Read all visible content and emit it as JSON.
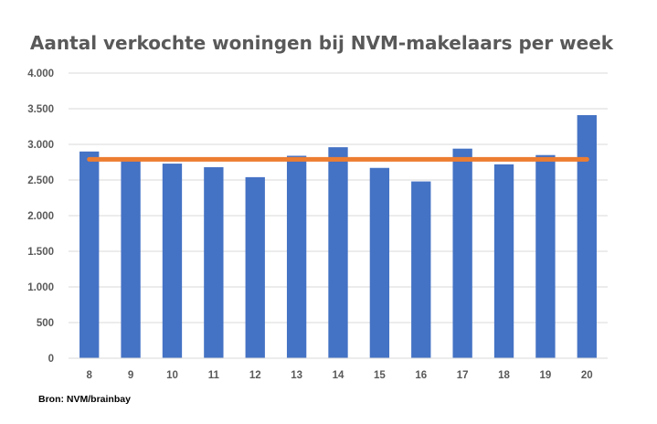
{
  "chart_data": {
    "type": "bar",
    "title": "Aantal verkochte woningen bij NVM-makelaars per week",
    "xlabel": "",
    "ylabel": "",
    "categories": [
      "8",
      "9",
      "10",
      "11",
      "12",
      "13",
      "14",
      "15",
      "16",
      "17",
      "18",
      "19",
      "20"
    ],
    "series": [
      {
        "type": "bar",
        "values": [
          2900,
          2770,
          2730,
          2680,
          2540,
          2840,
          2960,
          2670,
          2480,
          2940,
          2720,
          2850,
          3410
        ],
        "color": "#4472C4"
      },
      {
        "type": "line",
        "values": [
          2790,
          2790,
          2790,
          2790,
          2790,
          2790,
          2790,
          2790,
          2790,
          2790,
          2790,
          2790,
          2790
        ],
        "color": "#ED7D31"
      }
    ],
    "ylim": [
      0,
      4000
    ],
    "yticks": [
      0,
      500,
      1000,
      1500,
      2000,
      2500,
      3000,
      3500,
      4000
    ],
    "ytick_labels": [
      "0",
      "500",
      "1.000",
      "1.500",
      "2.000",
      "2.500",
      "3.000",
      "3.500",
      "4.000"
    ],
    "grid": true,
    "legend": "none"
  },
  "source_note": "Bron: NVM/brainbay"
}
